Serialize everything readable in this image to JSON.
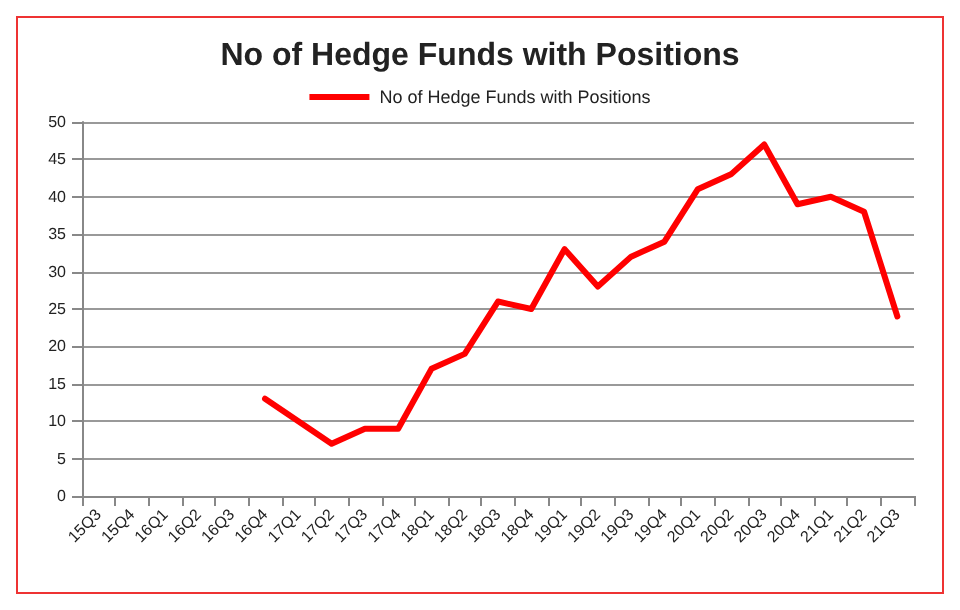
{
  "chart_data": {
    "type": "line",
    "title": "No of Hedge Funds with Positions",
    "categories": [
      "15Q3",
      "15Q4",
      "16Q1",
      "16Q2",
      "16Q3",
      "16Q4",
      "17Q1",
      "17Q2",
      "17Q3",
      "17Q4",
      "18Q1",
      "18Q2",
      "18Q3",
      "18Q4",
      "19Q1",
      "19Q2",
      "19Q3",
      "19Q4",
      "20Q1",
      "20Q2",
      "20Q3",
      "20Q4",
      "21Q1",
      "21Q2",
      "21Q3"
    ],
    "series": [
      {
        "name": "No of Hedge Funds with Positions",
        "color": "#ff0000",
        "values": [
          null,
          null,
          null,
          null,
          null,
          13,
          10,
          7,
          9,
          9,
          17,
          19,
          26,
          25,
          33,
          28,
          32,
          34,
          41,
          43,
          47,
          39,
          40,
          38,
          24
        ]
      }
    ],
    "ylim": [
      0,
      50
    ],
    "yticks": [
      0,
      5,
      10,
      15,
      20,
      25,
      30,
      35,
      40,
      45,
      50
    ],
    "grid": "y",
    "legend": "top",
    "marker": "none",
    "line_style": "solid"
  }
}
